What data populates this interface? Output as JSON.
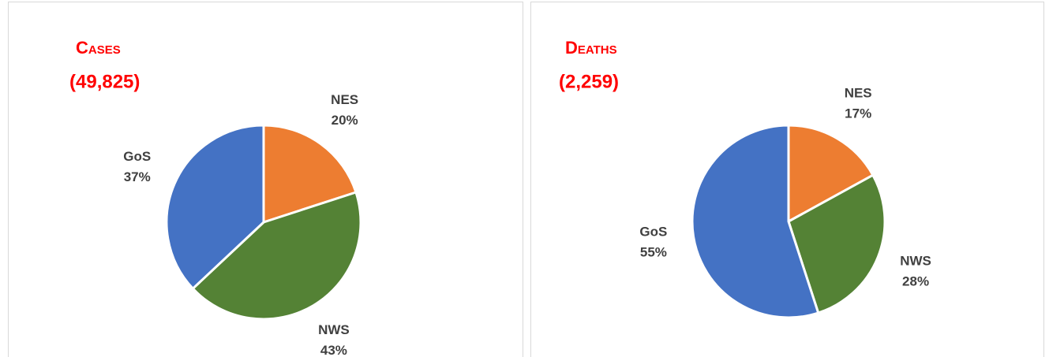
{
  "chart_data": [
    {
      "type": "pie",
      "title": "Cases",
      "subtitle": "(49,825)",
      "categories": [
        "NES",
        "NWS",
        "GoS"
      ],
      "values": [
        20,
        43,
        37
      ],
      "value_labels": [
        "20%",
        "43%",
        "37%"
      ],
      "colors": [
        "#ed7d31",
        "#548235",
        "#4472c4"
      ]
    },
    {
      "type": "pie",
      "title": "Deaths",
      "subtitle": "(2,259)",
      "categories": [
        "NES",
        "NWS",
        "GoS"
      ],
      "values": [
        17,
        28,
        55
      ],
      "value_labels": [
        "17%",
        "28%",
        "55%"
      ],
      "colors": [
        "#ed7d31",
        "#548235",
        "#4472c4"
      ]
    }
  ]
}
